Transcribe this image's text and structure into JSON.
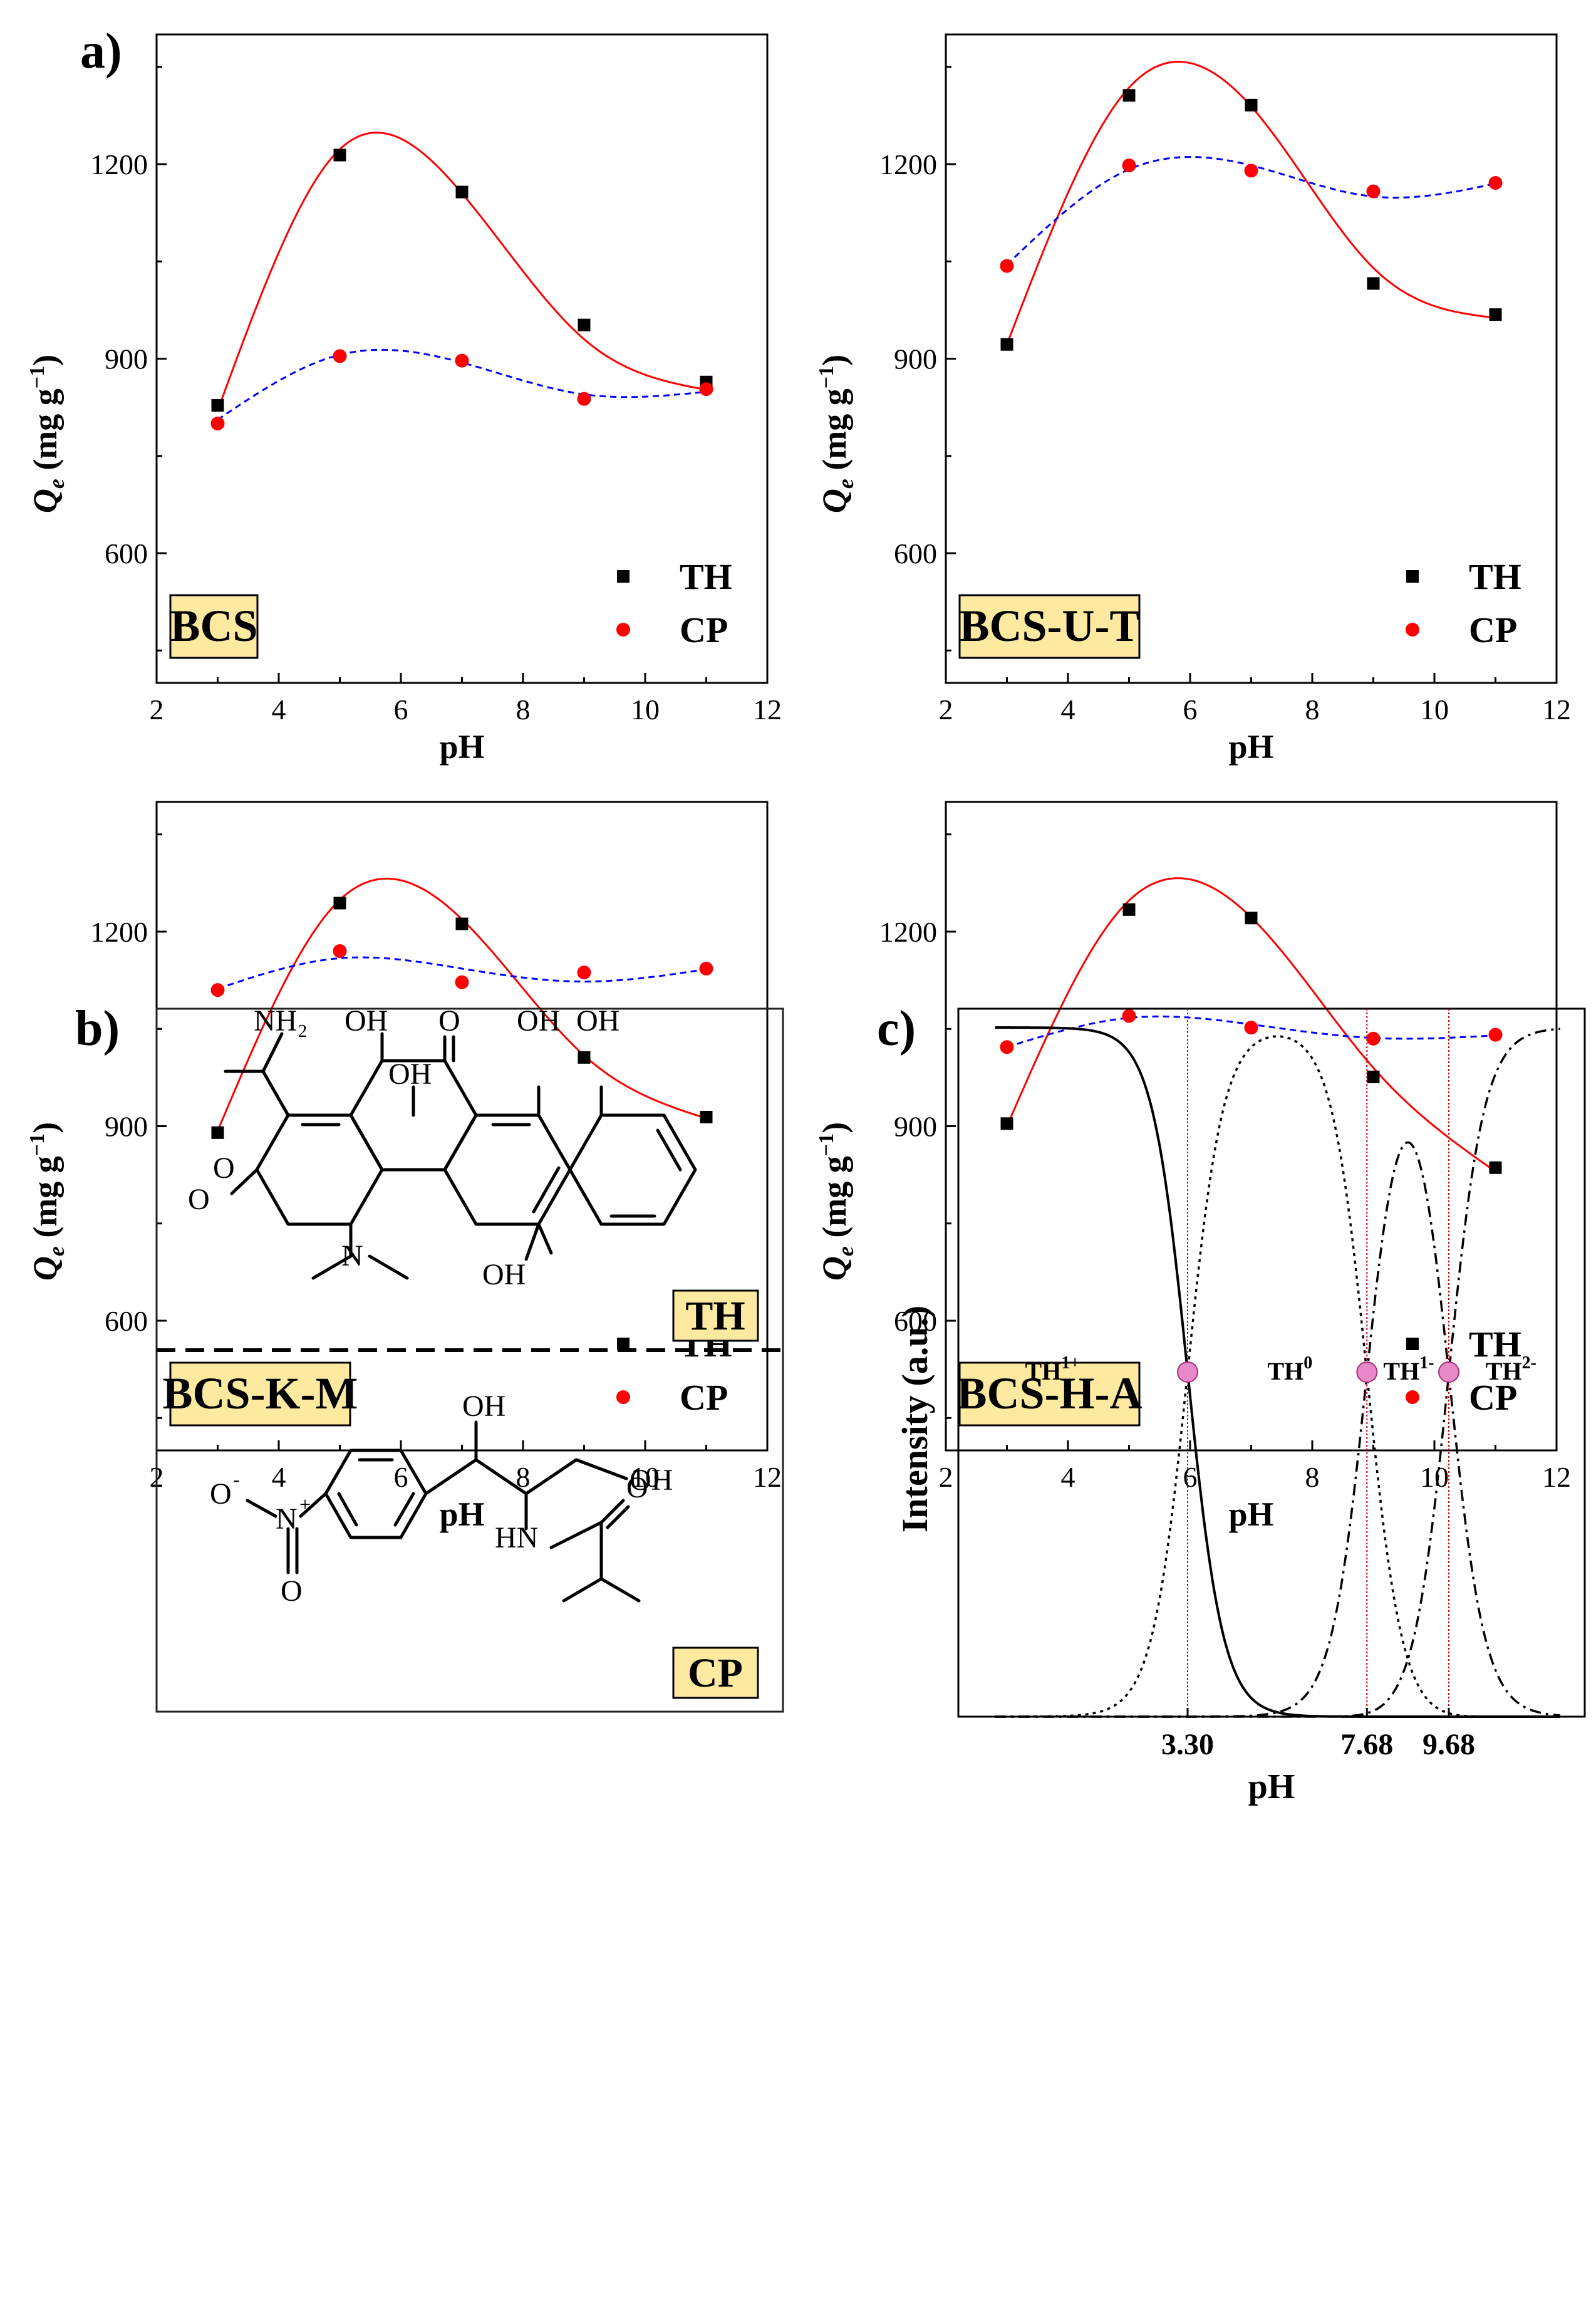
{
  "panel_labels": {
    "a": "a)",
    "b": "b)",
    "c": "c)"
  },
  "chart_data": [
    {
      "type": "scatter",
      "sample": "BCS",
      "xlabel": "pH",
      "ylabel": {
        "symbol": "Q",
        "subscript": "e",
        "unit": " (mg g",
        "unit_sup": "−1",
        "close": ")"
      },
      "xlim": [
        2,
        12
      ],
      "ylim": [
        400,
        1400
      ],
      "xticks": [
        2,
        4,
        6,
        8,
        10,
        12
      ],
      "yticks": [
        600,
        900,
        1200
      ],
      "x": [
        3,
        5,
        7,
        9,
        11
      ],
      "series": [
        {
          "name": "TH",
          "marker": "square",
          "color": "#000000",
          "values": [
            828,
            1214,
            1157,
            952,
            864
          ],
          "fit": {
            "style": "solid",
            "color": "#ff0000",
            "values": [
              820,
              1223,
              1155,
              930,
              852
            ]
          }
        },
        {
          "name": "CP",
          "marker": "circle",
          "color": "#ff0000",
          "values": [
            800,
            904,
            897,
            838,
            853
          ],
          "fit": {
            "style": "dashed",
            "color": "#0000ff",
            "values": [
              806,
              906,
              894,
              845,
              849
            ]
          }
        }
      ],
      "legend": "bottom-right"
    },
    {
      "type": "scatter",
      "sample": "BCS-U-T",
      "xlabel": "pH",
      "ylabel": {
        "symbol": "Q",
        "subscript": "e",
        "unit": " (mg g",
        "unit_sup": "−1",
        "close": ")"
      },
      "xlim": [
        2,
        12
      ],
      "ylim": [
        400,
        1400
      ],
      "xticks": [
        2,
        4,
        6,
        8,
        10,
        12
      ],
      "yticks": [
        600,
        900,
        1200
      ],
      "x": [
        3,
        5,
        7,
        9,
        11
      ],
      "series": [
        {
          "name": "TH",
          "marker": "square",
          "color": "#000000",
          "values": [
            922,
            1306,
            1291,
            1016,
            968
          ],
          "fit": {
            "style": "solid",
            "color": "#ff0000",
            "values": [
              922,
              1318,
              1289,
              1040,
              963
            ]
          }
        },
        {
          "name": "CP",
          "marker": "circle",
          "color": "#ff0000",
          "values": [
            1043,
            1198,
            1190,
            1158,
            1171
          ],
          "fit": {
            "style": "dashed",
            "color": "#0000ff",
            "values": [
              1045,
              1192,
              1198,
              1150,
              1170
            ]
          }
        }
      ],
      "legend": "bottom-right"
    },
    {
      "type": "scatter",
      "sample": "BCS-K-M",
      "xlabel": "pH",
      "ylabel": {
        "symbol": "Q",
        "subscript": "e",
        "unit": " (mg g",
        "unit_sup": "−1",
        "close": ")"
      },
      "xlim": [
        2,
        12
      ],
      "ylim": [
        400,
        1400
      ],
      "xticks": [
        2,
        4,
        6,
        8,
        10,
        12
      ],
      "yticks": [
        600,
        900,
        1200
      ],
      "x": [
        3,
        5,
        7,
        9,
        11
      ],
      "series": [
        {
          "name": "TH",
          "marker": "square",
          "color": "#000000",
          "values": [
            890,
            1244,
            1212,
            1006,
            914
          ],
          "fit": {
            "style": "solid",
            "color": "#ff0000",
            "values": [
              893,
              1249,
              1219,
              1009,
              912
            ]
          }
        },
        {
          "name": "CP",
          "marker": "circle",
          "color": "#ff0000",
          "values": [
            1110,
            1170,
            1122,
            1137,
            1143
          ],
          "fit": {
            "style": "dashed",
            "color": "#0000ff",
            "values": [
              1112,
              1159,
              1143,
              1123,
              1142
            ]
          }
        }
      ],
      "legend": "bottom-right"
    },
    {
      "type": "scatter",
      "sample": "BCS-H-A",
      "xlabel": "pH",
      "ylabel": {
        "symbol": "Q",
        "subscript": "e",
        "unit": " (mg g",
        "unit_sup": "−1",
        "close": ")"
      },
      "xlim": [
        2,
        12
      ],
      "ylim": [
        400,
        1400
      ],
      "xticks": [
        2,
        4,
        6,
        8,
        10,
        12
      ],
      "yticks": [
        600,
        900,
        1200
      ],
      "x": [
        3,
        5,
        7,
        9,
        11
      ],
      "series": [
        {
          "name": "TH",
          "marker": "square",
          "color": "#000000",
          "values": [
            904,
            1234,
            1221,
            976,
            836
          ],
          "fit": {
            "style": "solid",
            "color": "#ff0000",
            "values": [
              900,
              1248,
              1222,
              990,
              830
            ]
          }
        },
        {
          "name": "CP",
          "marker": "circle",
          "color": "#ff0000",
          "values": [
            1022,
            1070,
            1052,
            1035,
            1041
          ],
          "fit": {
            "style": "dashed",
            "color": "#0000ff",
            "values": [
              1022,
              1067,
              1057,
              1036,
              1040
            ]
          }
        }
      ],
      "legend": "bottom-right"
    },
    {
      "type": "line",
      "panel": "c",
      "xlabel": "pH",
      "ylabel": "Intensity (a.u.)",
      "xticks": [
        "3.30",
        "7.68",
        "9.68"
      ],
      "pKa": [
        3.3,
        7.68,
        9.68
      ],
      "xlim": [
        -2.3,
        13.0
      ],
      "ylim": [
        0,
        1
      ],
      "species": [
        {
          "name": "TH",
          "sup": "1+",
          "label_x": 0.0,
          "style": "solid"
        },
        {
          "name": "TH",
          "sup": "0",
          "label_x": 5.8,
          "style": "dotted"
        },
        {
          "name": "TH",
          "sup": "1-",
          "label_x": 8.7,
          "style": "dashdot"
        },
        {
          "name": "TH",
          "sup": "2-",
          "label_x": 11.2,
          "style": "dashdot"
        }
      ],
      "crossing_marker_color": "#e88ac9",
      "guide_color": "#d40000"
    }
  ],
  "structures": {
    "TH": {
      "label": "TH",
      "groups": {
        "nh2": "NH₂",
        "o_amide": "O",
        "o_keto": "O",
        "oh1": "OH",
        "oh2": "OH",
        "o_top": "O",
        "oh3": "OH",
        "oh4": "OH",
        "oh5": "OH",
        "n": "N"
      }
    },
    "CP": {
      "label": "CP",
      "groups": {
        "oh1": "OH",
        "oh2": "OH",
        "hn": "HN",
        "o_amide": "O",
        "o_minus": "O",
        "o_minus_sup": "-",
        "n_plus": "N",
        "n_plus_sup": "+",
        "o_bottom": "O"
      }
    }
  },
  "colors": {
    "sample_box": "#fde9a0",
    "th_fit": "#ff0000",
    "cp_fit": "#0000ff",
    "cp_marker": "#ff0000",
    "th_marker": "#000000"
  }
}
